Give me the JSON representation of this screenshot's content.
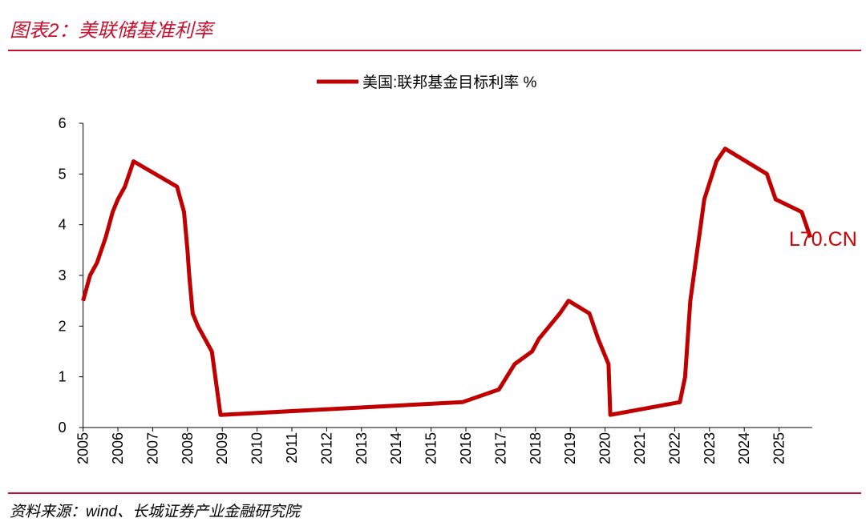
{
  "header": {
    "title": "图表2：美联储基准利率"
  },
  "footer": {
    "source": "资料来源：wind、长城证券产业金融研究院"
  },
  "watermark": "L70.CN",
  "colors": {
    "accent": "#c8102e",
    "series": "#c00000"
  },
  "chart_data": {
    "type": "line",
    "title": "",
    "xlabel": "",
    "ylabel": "",
    "ylim": [
      0,
      6
    ],
    "xlim": [
      2005,
      2026
    ],
    "grid": false,
    "legend": "top-center",
    "yticks": [
      "0",
      "1",
      "2",
      "3",
      "4",
      "5",
      "6"
    ],
    "xticks": [
      "2005",
      "2006",
      "2007",
      "2008",
      "2009",
      "2010",
      "2011",
      "2012",
      "2013",
      "2014",
      "2015",
      "2016",
      "2017",
      "2018",
      "2019",
      "2020",
      "2021",
      "2022",
      "2023",
      "2024",
      "2025"
    ],
    "series": [
      {
        "name": "美国:联邦基金目标利率 %",
        "points": [
          [
            2005.0,
            2.5
          ],
          [
            2005.2,
            3.0
          ],
          [
            2005.4,
            3.25
          ],
          [
            2005.65,
            3.75
          ],
          [
            2005.85,
            4.25
          ],
          [
            2006.0,
            4.5
          ],
          [
            2006.2,
            4.75
          ],
          [
            2006.45,
            5.25
          ],
          [
            2007.7,
            4.75
          ],
          [
            2007.9,
            4.25
          ],
          [
            2008.0,
            3.5
          ],
          [
            2008.05,
            3.0
          ],
          [
            2008.15,
            2.25
          ],
          [
            2008.3,
            2.0
          ],
          [
            2008.7,
            1.5
          ],
          [
            2008.8,
            1.0
          ],
          [
            2008.95,
            0.25
          ],
          [
            2015.9,
            0.5
          ],
          [
            2016.95,
            0.75
          ],
          [
            2017.4,
            1.25
          ],
          [
            2017.9,
            1.5
          ],
          [
            2018.1,
            1.75
          ],
          [
            2018.4,
            2.0
          ],
          [
            2018.7,
            2.25
          ],
          [
            2018.95,
            2.5
          ],
          [
            2019.55,
            2.25
          ],
          [
            2019.8,
            1.75
          ],
          [
            2020.1,
            1.25
          ],
          [
            2020.15,
            0.25
          ],
          [
            2022.15,
            0.5
          ],
          [
            2022.3,
            1.0
          ],
          [
            2022.45,
            2.5
          ],
          [
            2022.6,
            3.25
          ],
          [
            2022.75,
            4.0
          ],
          [
            2022.85,
            4.5
          ],
          [
            2023.2,
            5.25
          ],
          [
            2023.45,
            5.5
          ],
          [
            2024.65,
            5.0
          ],
          [
            2024.9,
            4.5
          ],
          [
            2025.65,
            4.25
          ],
          [
            2025.9,
            3.75
          ]
        ]
      }
    ]
  }
}
